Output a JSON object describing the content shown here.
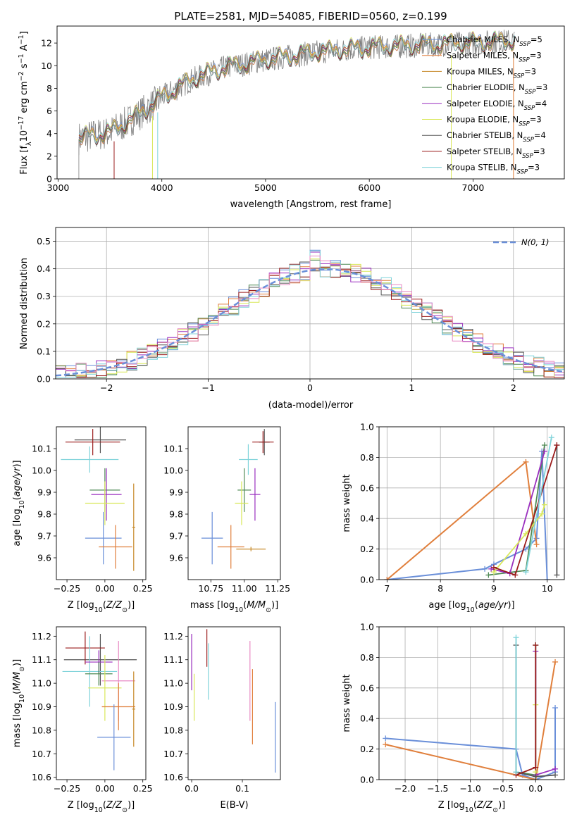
{
  "figure_title": "PLATE=2581, MJD=54085, FIBERID=0560, z=0.199",
  "colors": {
    "Chabrier MILES": "#6a8fd9",
    "Salpeter MILES": "#e07f3c",
    "Kroupa MILES": "#c78a2a",
    "Chabrier ELODIE": "#4f8a55",
    "Salpeter ELODIE": "#9a2fbf",
    "Kroupa ELODIE": "#d9e85a",
    "Chabrier STELIB": "#555555",
    "Salpeter STELIB": "#9b1c1c",
    "Kroupa STELIB": "#7fd3da",
    "pink": "#e88ac4",
    "data": "#808080",
    "gaussian": "#6a8fd9"
  },
  "chart_data": [
    {
      "id": "spectrum",
      "type": "line",
      "title": "PLATE=2581, MJD=54085, FIBERID=0560, z=0.199",
      "xlabel": "wavelength [Angstrom, rest frame]",
      "ylabel": "Flux [f_λ 10^-17 erg cm^-2 s^-1 A^-1]",
      "xlim": [
        2990,
        7880
      ],
      "ylim": [
        0,
        13.5
      ],
      "xticks": [
        3000,
        4000,
        5000,
        6000,
        7000
      ],
      "yticks": [
        0,
        2,
        4,
        6,
        8,
        10,
        12
      ],
      "grid": false,
      "legend_position": "top-right",
      "data_range": [
        3200,
        7400
      ],
      "legend": [
        {
          "name": "Chabrier MILES",
          "nssp": "5"
        },
        {
          "name": "Salpeter MILES",
          "nssp": "3"
        },
        {
          "name": "Kroupa MILES",
          "nssp": "3"
        },
        {
          "name": "Chabrier ELODIE",
          "nssp": "3"
        },
        {
          "name": "Salpeter ELODIE",
          "nssp": "4"
        },
        {
          "name": "Kroupa ELODIE",
          "nssp": "3"
        },
        {
          "name": "Chabrier STELIB",
          "nssp": "4"
        },
        {
          "name": "Salpeter STELIB",
          "nssp": "3"
        },
        {
          "name": "Kroupa STELIB",
          "nssp": "3"
        }
      ],
      "continuum": [
        [
          3200,
          3.6
        ],
        [
          3500,
          4.1
        ],
        [
          3700,
          5.2
        ],
        [
          3950,
          6.8
        ],
        [
          4000,
          7.2
        ],
        [
          4300,
          8.8
        ],
        [
          4600,
          9.8
        ],
        [
          5000,
          10.5
        ],
        [
          5500,
          11.2
        ],
        [
          6000,
          11.6
        ],
        [
          6500,
          11.8
        ],
        [
          7000,
          12.0
        ],
        [
          7400,
          12.2
        ]
      ]
    },
    {
      "id": "residuals",
      "type": "histogram",
      "xlabel": "(data-model)/error",
      "ylabel": "Normed distribution",
      "xlim": [
        -2.5,
        2.5
      ],
      "ylim": [
        0,
        0.55
      ],
      "xticks": [
        -2,
        -1,
        0,
        1,
        2
      ],
      "yticks": [
        0.0,
        0.1,
        0.2,
        0.3,
        0.4,
        0.5
      ],
      "grid": true,
      "legend_position": "top-right",
      "legend": "N(0, 1)",
      "bin_width": 0.1,
      "gaussian": {
        "mean": 0.15,
        "sigma": 1.0
      }
    },
    {
      "id": "age_vs_Z",
      "type": "errorbar",
      "xlabel": "Z [log10(Z/Z_sun)]",
      "ylabel": "age [log10(age/yr)]",
      "xlim": [
        -0.32,
        0.27
      ],
      "ylim": [
        9.5,
        10.2
      ],
      "xticks": [
        -0.25,
        0.0,
        0.25
      ],
      "yticks": [
        9.6,
        9.7,
        9.8,
        9.9,
        10.0,
        10.1
      ],
      "points": [
        {
          "model": "Chabrier STELIB",
          "x": -0.03,
          "y": 10.14,
          "xerr": 0.17,
          "yerr": 0.06
        },
        {
          "model": "Salpeter STELIB",
          "x": -0.08,
          "y": 10.13,
          "xerr": 0.18,
          "yerr": 0.06
        },
        {
          "model": "Kroupa STELIB",
          "x": -0.1,
          "y": 10.05,
          "xerr": 0.19,
          "yerr": 0.06
        },
        {
          "model": "Chabrier ELODIE",
          "x": 0.0,
          "y": 9.91,
          "xerr": 0.1,
          "yerr": 0.1
        },
        {
          "model": "Salpeter ELODIE",
          "x": 0.01,
          "y": 9.89,
          "xerr": 0.1,
          "yerr": 0.12
        },
        {
          "model": "Kroupa ELODIE",
          "x": 0.0,
          "y": 9.85,
          "xerr": 0.13,
          "yerr": 0.1
        },
        {
          "model": "Chabrier MILES",
          "x": -0.01,
          "y": 9.69,
          "xerr": 0.12,
          "yerr": 0.12
        },
        {
          "model": "Salpeter MILES",
          "x": 0.07,
          "y": 9.65,
          "xerr": 0.11,
          "yerr": 0.1
        },
        {
          "model": "Kroupa MILES",
          "x": 0.19,
          "y": 9.74,
          "xerr": 0.01,
          "yerr": 0.2
        }
      ]
    },
    {
      "id": "age_vs_mass",
      "type": "errorbar",
      "xlabel": "mass [log10(M/M_sun)]",
      "ylabel": "",
      "xlim": [
        10.58,
        11.27
      ],
      "ylim": [
        9.5,
        10.2
      ],
      "xticks": [
        10.75,
        11.0,
        11.25
      ],
      "yticks": [
        9.6,
        9.7,
        9.8,
        9.9,
        10.0,
        10.1
      ],
      "points": [
        {
          "model": "Chabrier STELIB",
          "x": 11.15,
          "y": 10.13,
          "xerr": 0.04,
          "yerr": 0.06
        },
        {
          "model": "Salpeter STELIB",
          "x": 11.14,
          "y": 10.13,
          "xerr": 0.08,
          "yerr": 0.05
        },
        {
          "model": "Kroupa STELIB",
          "x": 11.03,
          "y": 10.05,
          "xerr": 0.07,
          "yerr": 0.07
        },
        {
          "model": "Chabrier ELODIE",
          "x": 11.0,
          "y": 9.91,
          "xerr": 0.05,
          "yerr": 0.1
        },
        {
          "model": "Salpeter ELODIE",
          "x": 11.08,
          "y": 9.89,
          "xerr": 0.04,
          "yerr": 0.12
        },
        {
          "model": "Kroupa ELODIE",
          "x": 10.98,
          "y": 9.85,
          "xerr": 0.05,
          "yerr": 0.1
        },
        {
          "model": "Chabrier MILES",
          "x": 10.76,
          "y": 9.69,
          "xerr": 0.08,
          "yerr": 0.12
        },
        {
          "model": "Salpeter MILES",
          "x": 10.9,
          "y": 9.65,
          "xerr": 0.1,
          "yerr": 0.1
        },
        {
          "model": "Kroupa MILES",
          "x": 11.05,
          "y": 9.64,
          "xerr": 0.11,
          "yerr": 0.01
        }
      ]
    },
    {
      "id": "mass_weight_vs_age",
      "type": "line",
      "xlabel": "age [log10(age/yr)]",
      "ylabel": "mass weight",
      "xlim": [
        6.85,
        10.32
      ],
      "ylim": [
        0,
        1.0
      ],
      "xticks": [
        7,
        8,
        9,
        10
      ],
      "yticks": [
        0.0,
        0.2,
        0.4,
        0.6,
        0.8,
        1.0
      ],
      "grid": true,
      "series": [
        {
          "model": "Chabrier MILES",
          "x": [
            7.0,
            8.83,
            9.0,
            9.6,
            9.8,
            9.9,
            10.0
          ],
          "y": [
            0.0,
            0.07,
            0.1,
            0.2,
            0.27,
            0.84,
            0.0
          ]
        },
        {
          "model": "Salpeter MILES",
          "x": [
            7.0,
            9.6,
            9.8
          ],
          "y": [
            0.0,
            0.77,
            0.23
          ]
        },
        {
          "model": "Chabrier ELODIE",
          "x": [
            8.9,
            9.6,
            9.95
          ],
          "y": [
            0.03,
            0.06,
            0.88
          ]
        },
        {
          "model": "Salpeter ELODIE",
          "x": [
            8.95,
            9.3,
            9.95
          ],
          "y": [
            0.07,
            0.04,
            0.84
          ]
        },
        {
          "model": "Kroupa ELODIE",
          "x": [
            9.0,
            9.6,
            9.9,
            9.95
          ],
          "y": [
            0.05,
            0.3,
            0.43,
            0.49
          ]
        },
        {
          "model": "Chabrier STELIB",
          "x": [
            10.18,
            10.18
          ],
          "y": [
            0.03,
            0.88
          ]
        },
        {
          "model": "Salpeter STELIB",
          "x": [
            9.0,
            9.4,
            10.18
          ],
          "y": [
            0.08,
            0.03,
            0.88
          ]
        },
        {
          "model": "Kroupa STELIB",
          "x": [
            9.6,
            10.08
          ],
          "y": [
            0.05,
            0.93
          ]
        }
      ]
    },
    {
      "id": "mass_vs_Z",
      "type": "errorbar",
      "xlabel": "Z [log10(Z/Z_sun)]",
      "ylabel": "mass [log10(M/M_sun)]",
      "xlim": [
        -0.32,
        0.27
      ],
      "ylim": [
        10.59,
        11.24
      ],
      "xticks": [
        -0.25,
        0.0,
        0.25
      ],
      "yticks": [
        10.6,
        10.7,
        10.8,
        10.9,
        11.0,
        11.1,
        11.2
      ],
      "points": [
        {
          "model": "Chabrier STELIB",
          "x": -0.03,
          "y": 11.1,
          "xerr": 0.24,
          "yerr": 0.11
        },
        {
          "model": "Salpeter STELIB",
          "x": -0.13,
          "y": 11.15,
          "xerr": 0.13,
          "yerr": 0.07
        },
        {
          "model": "Kroupa STELIB",
          "x": -0.1,
          "y": 11.05,
          "xerr": 0.18,
          "yerr": 0.15
        },
        {
          "model": "Salpeter ELODIE",
          "x": -0.04,
          "y": 11.09,
          "xerr": 0.09,
          "yerr": 0.05
        },
        {
          "model": "Chabrier ELODIE",
          "x": -0.04,
          "y": 11.04,
          "xerr": 0.09,
          "yerr": 0.05
        },
        {
          "model": "pink",
          "x": 0.09,
          "y": 11.01,
          "xerr": 0.11,
          "yerr": 0.17
        },
        {
          "model": "Kroupa ELODIE",
          "x": 0.0,
          "y": 10.98,
          "xerr": 0.11,
          "yerr": 0.14
        },
        {
          "model": "Salpeter MILES",
          "x": 0.09,
          "y": 10.9,
          "xerr": 0.11,
          "yerr": 0.1
        },
        {
          "model": "Chabrier MILES",
          "x": 0.06,
          "y": 10.77,
          "xerr": 0.11,
          "yerr": 0.14
        },
        {
          "model": "Kroupa MILES",
          "x": 0.19,
          "y": 10.89,
          "xerr": 0.01,
          "yerr": 0.16
        }
      ]
    },
    {
      "id": "mass_vs_ebv",
      "type": "errorbar",
      "xlabel": "E(B-V)",
      "ylabel": "",
      "xlim": [
        -0.007,
        0.175
      ],
      "ylim": [
        10.59,
        11.24
      ],
      "xticks": [
        0.0,
        0.1
      ],
      "yticks": [
        10.6,
        10.7,
        10.8,
        10.9,
        11.0,
        11.1,
        11.2
      ],
      "points": [
        {
          "model": "Salpeter ELODIE",
          "x": 0.0,
          "y": 11.09,
          "xerr": 0,
          "yerr": 0.12
        },
        {
          "model": "Kroupa ELODIE",
          "x": 0.005,
          "y": 10.94,
          "xerr": 0,
          "yerr": 0.1
        },
        {
          "model": "Kroupa STELIB",
          "x": 0.033,
          "y": 11.05,
          "xerr": 0,
          "yerr": 0.12
        },
        {
          "model": "Salpeter STELIB",
          "x": 0.03,
          "y": 11.15,
          "xerr": 0,
          "yerr": 0.08
        },
        {
          "model": "pink",
          "x": 0.115,
          "y": 11.01,
          "xerr": 0,
          "yerr": 0.17
        },
        {
          "model": "Salpeter MILES",
          "x": 0.12,
          "y": 10.9,
          "xerr": 0,
          "yerr": 0.16
        },
        {
          "model": "Chabrier MILES",
          "x": 0.165,
          "y": 10.77,
          "xerr": 0,
          "yerr": 0.15
        }
      ]
    },
    {
      "id": "mass_weight_vs_Z",
      "type": "line",
      "xlabel": "Z [log10(Z/Z_sun)]",
      "ylabel": "mass weight",
      "xlim": [
        -2.4,
        0.44
      ],
      "ylim": [
        0,
        1.0
      ],
      "xticks": [
        -2.0,
        -1.5,
        -1.0,
        -0.5,
        0.0
      ],
      "yticks": [
        0.0,
        0.2,
        0.4,
        0.6,
        0.8,
        1.0
      ],
      "grid": true,
      "series": [
        {
          "model": "Chabrier MILES",
          "x": [
            -2.3,
            -0.3,
            -0.2,
            0.0,
            0.3,
            0.3
          ],
          "y": [
            0.27,
            0.2,
            0.03,
            0.0,
            0.05,
            0.47
          ]
        },
        {
          "model": "Salpeter MILES",
          "x": [
            -2.3,
            0.0,
            0.3
          ],
          "y": [
            0.23,
            0.0,
            0.77
          ]
        },
        {
          "model": "Chabrier ELODIE",
          "x": [
            -0.3,
            0.0,
            0.0
          ],
          "y": [
            0.05,
            0.03,
            0.88
          ]
        },
        {
          "model": "Salpeter ELODIE",
          "x": [
            0.0,
            0.0,
            0.3
          ],
          "y": [
            0.84,
            0.03,
            0.07
          ]
        },
        {
          "model": "Kroupa ELODIE",
          "x": [
            0.0,
            0.0
          ],
          "y": [
            0.05,
            0.49
          ]
        },
        {
          "model": "Chabrier STELIB",
          "x": [
            -0.3,
            -0.3,
            0.0,
            0.3
          ],
          "y": [
            0.88,
            0.05,
            0.02,
            0.03
          ]
        },
        {
          "model": "Salpeter STELIB",
          "x": [
            -0.3,
            0.0,
            0.0
          ],
          "y": [
            0.03,
            0.08,
            0.88
          ]
        },
        {
          "model": "Kroupa STELIB",
          "x": [
            -0.3,
            -0.3
          ],
          "y": [
            0.05,
            0.93
          ]
        }
      ]
    }
  ]
}
